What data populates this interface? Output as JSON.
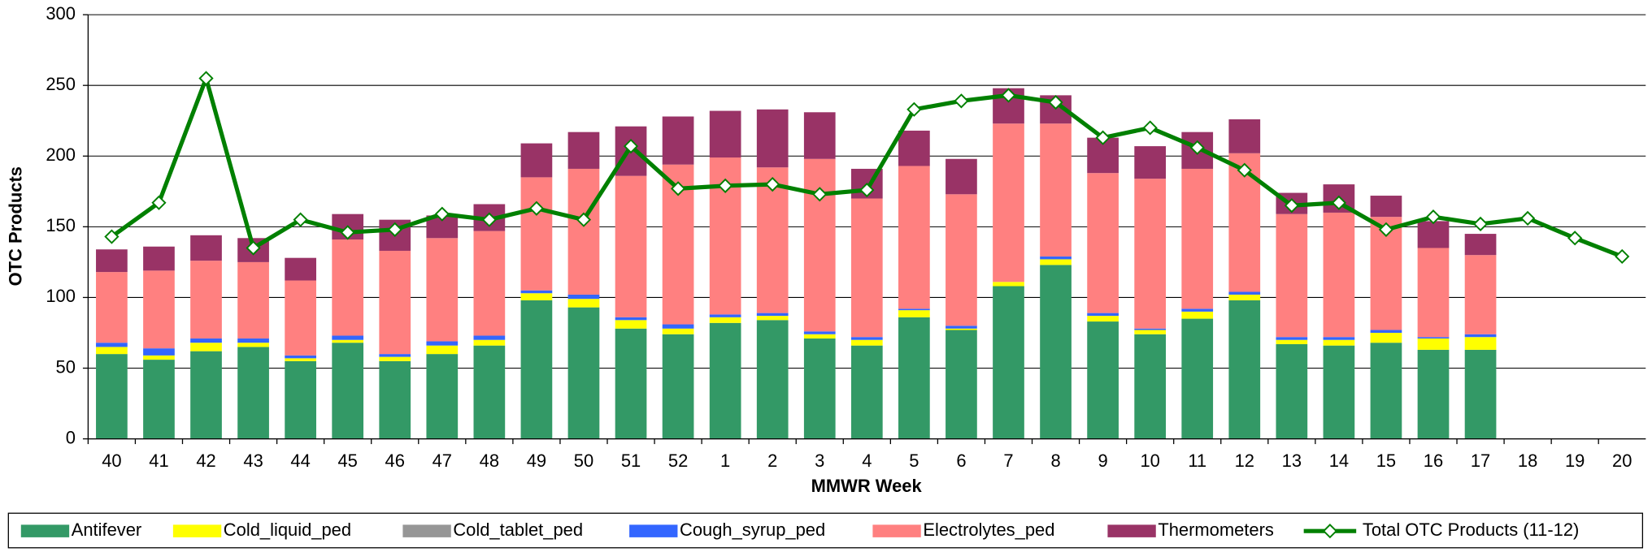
{
  "chart_data": {
    "type": "bar",
    "stacked": true,
    "x_label": "MMWR Week",
    "y_label": "OTC Products",
    "categories": [
      "40",
      "41",
      "42",
      "43",
      "44",
      "45",
      "46",
      "47",
      "48",
      "49",
      "50",
      "51",
      "52",
      "1",
      "2",
      "3",
      "4",
      "5",
      "6",
      "7",
      "8",
      "9",
      "10",
      "11",
      "12",
      "13",
      "14",
      "15",
      "16",
      "17",
      "18",
      "19",
      "20"
    ],
    "series": [
      {
        "name": "Antifever",
        "color": "#339966",
        "values": [
          60,
          56,
          62,
          65,
          55,
          68,
          55,
          60,
          66,
          98,
          93,
          78,
          74,
          82,
          84,
          71,
          66,
          86,
          77,
          108,
          123,
          83,
          74,
          85,
          98,
          67,
          66,
          68,
          63,
          63,
          null,
          null,
          null
        ]
      },
      {
        "name": "Cold_liquid_ped",
        "color": "#ffff00",
        "values": [
          5,
          3,
          6,
          3,
          2,
          2,
          3,
          6,
          4,
          5,
          6,
          6,
          4,
          4,
          3,
          3,
          4,
          5,
          1,
          3,
          4,
          4,
          3,
          5,
          4,
          3,
          4,
          7,
          8,
          9,
          null,
          null,
          null
        ]
      },
      {
        "name": "Cold_tablet_ped",
        "color": "#969696",
        "values": [
          0,
          0,
          0,
          0,
          0,
          0,
          0,
          0,
          0,
          0,
          0,
          0,
          0,
          0,
          0,
          0,
          0,
          0,
          0,
          0,
          0,
          0,
          0,
          0,
          0,
          0,
          0,
          0,
          0,
          0,
          null,
          null,
          null
        ]
      },
      {
        "name": "Cough_syrup_ped",
        "color": "#3366ff",
        "values": [
          3,
          5,
          3,
          3,
          2,
          3,
          2,
          3,
          3,
          2,
          3,
          2,
          3,
          2,
          2,
          2,
          2,
          1,
          2,
          0,
          2,
          2,
          1,
          2,
          2,
          2,
          2,
          2,
          1,
          2,
          null,
          null,
          null
        ]
      },
      {
        "name": "Electrolytes_ped",
        "color": "#ff8080",
        "values": [
          50,
          55,
          55,
          54,
          53,
          68,
          73,
          73,
          74,
          80,
          89,
          100,
          113,
          111,
          103,
          122,
          98,
          101,
          93,
          112,
          94,
          99,
          106,
          99,
          98,
          87,
          88,
          80,
          63,
          56,
          null,
          null,
          null
        ]
      },
      {
        "name": "Thermometers",
        "color": "#993366",
        "values": [
          16,
          17,
          18,
          17,
          16,
          18,
          22,
          16,
          19,
          24,
          26,
          35,
          34,
          33,
          41,
          33,
          21,
          25,
          25,
          25,
          20,
          25,
          23,
          26,
          24,
          15,
          20,
          15,
          19,
          15,
          null,
          null,
          null
        ]
      },
      {
        "name": "Total OTC Products (11-12)",
        "type": "line",
        "color": "#008000",
        "values": [
          143,
          167,
          255,
          135,
          155,
          146,
          148,
          159,
          155,
          163,
          155,
          207,
          177,
          179,
          180,
          173,
          176,
          233,
          239,
          243,
          238,
          213,
          220,
          206,
          190,
          165,
          167,
          148,
          157,
          152,
          156,
          142,
          129
        ]
      }
    ],
    "ylim": [
      0,
      300
    ],
    "yticks": [
      0,
      50,
      100,
      150,
      200,
      250,
      300
    ],
    "grid": true,
    "legend": "bottom"
  }
}
